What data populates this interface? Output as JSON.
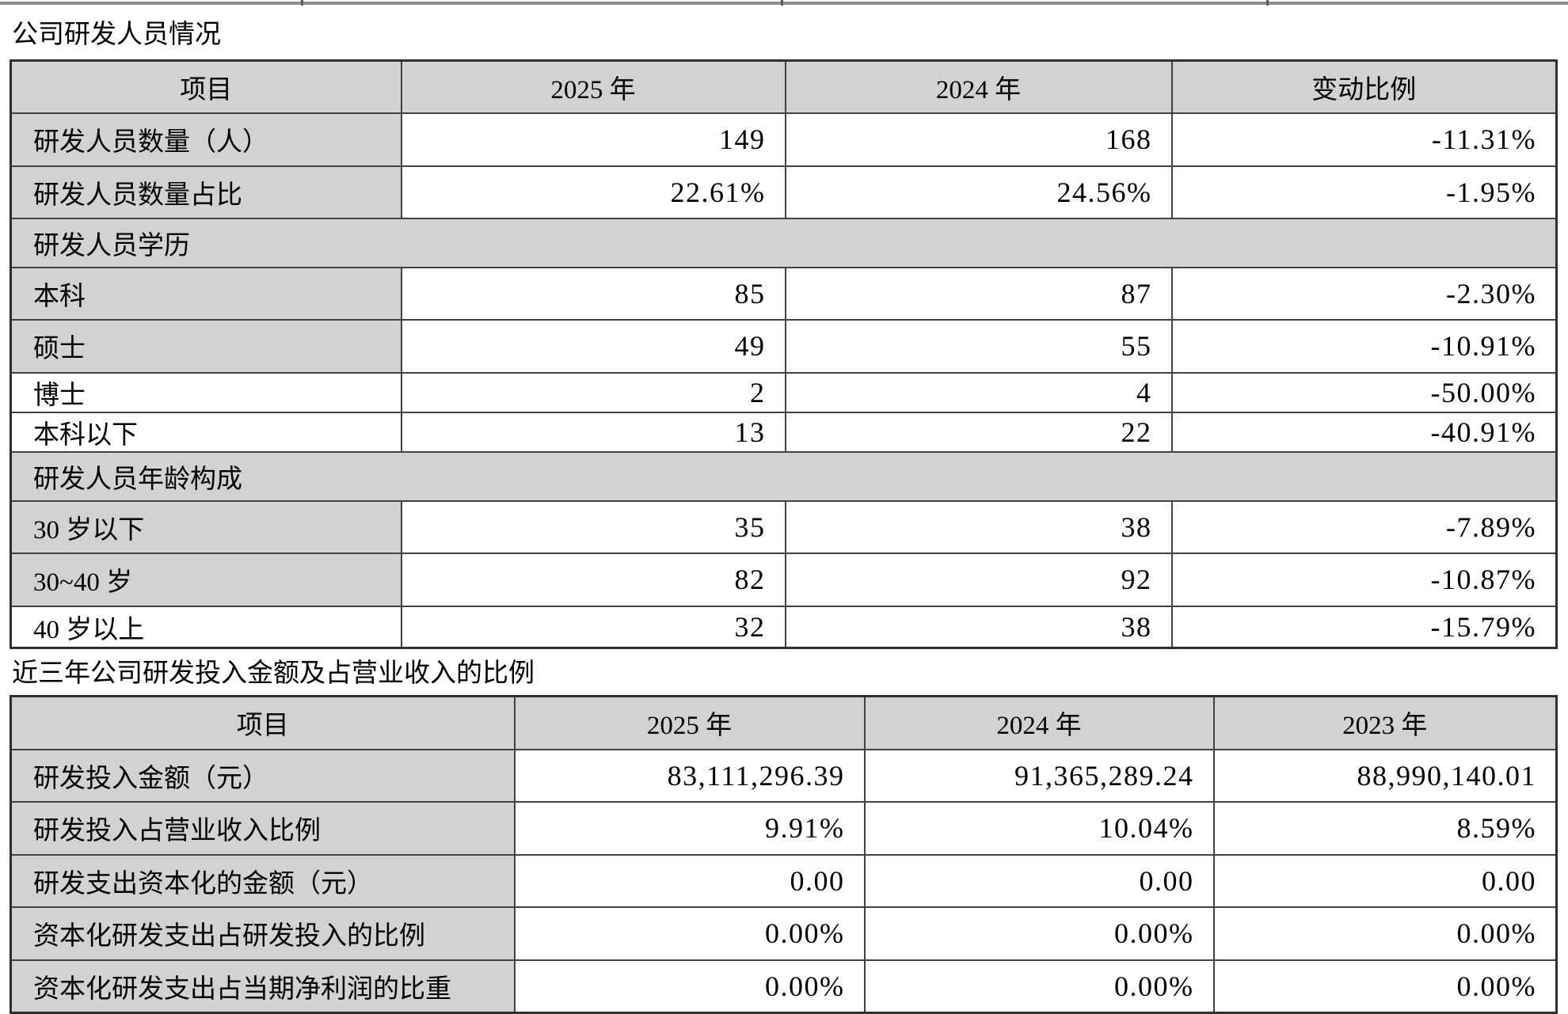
{
  "colors": {
    "cell_grey": "#d2d2d2",
    "table_border": "#424242",
    "outer_border": "#303030",
    "top_remnant_line": "#8f8f8f",
    "text": "#000000",
    "background": "#ffffff"
  },
  "table1": {
    "title": "公司研发人员情况",
    "columns": [
      "项目",
      "2025 年",
      "2024 年",
      "变动比例"
    ],
    "rows": [
      {
        "type": "data",
        "label": "研发人员数量（人）",
        "values": [
          "149",
          "168",
          "-11.31%"
        ]
      },
      {
        "type": "data",
        "label": "研发人员数量占比",
        "values": [
          "22.61%",
          "24.56%",
          "-1.95%"
        ]
      },
      {
        "type": "section",
        "label": "研发人员学历"
      },
      {
        "type": "data",
        "label": "本科",
        "values": [
          "85",
          "87",
          "-2.30%"
        ]
      },
      {
        "type": "data",
        "label": "硕士",
        "values": [
          "49",
          "55",
          "-10.91%"
        ]
      },
      {
        "type": "data",
        "label": "博士",
        "values": [
          "2",
          "4",
          "-50.00%"
        ]
      },
      {
        "type": "data",
        "label": "本科以下",
        "values": [
          "13",
          "22",
          "-40.91%"
        ]
      },
      {
        "type": "section",
        "label": "研发人员年龄构成"
      },
      {
        "type": "data",
        "label": "30 岁以下",
        "values": [
          "35",
          "38",
          "-7.89%"
        ]
      },
      {
        "type": "data",
        "label": "30~40 岁",
        "values": [
          "82",
          "92",
          "-10.87%"
        ]
      },
      {
        "type": "data",
        "label": "40 岁以上",
        "values": [
          "32",
          "38",
          "-15.79%"
        ]
      }
    ]
  },
  "table2": {
    "title": "近三年公司研发投入金额及占营业收入的比例",
    "columns": [
      "项目",
      "2025 年",
      "2024 年",
      "2023 年"
    ],
    "rows": [
      {
        "label": "研发投入金额（元）",
        "values": [
          "83,111,296.39",
          "91,365,289.24",
          "88,990,140.01"
        ]
      },
      {
        "label": "研发投入占营业收入比例",
        "values": [
          "9.91%",
          "10.04%",
          "8.59%"
        ]
      },
      {
        "label": "研发支出资本化的金额（元）",
        "values": [
          "0.00",
          "0.00",
          "0.00"
        ]
      },
      {
        "label": "资本化研发支出占研发投入的比例",
        "values": [
          "0.00%",
          "0.00%",
          "0.00%"
        ]
      },
      {
        "label": "资本化研发支出占当期净利润的比重",
        "values": [
          "0.00%",
          "0.00%",
          "0.00%"
        ]
      }
    ]
  }
}
